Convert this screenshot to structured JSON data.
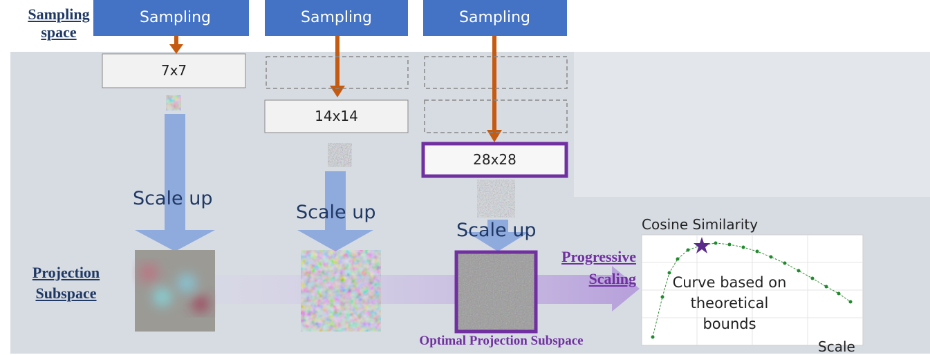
{
  "labels": {
    "sampling_space": "Sampling space",
    "projection_subspace": "Projection Subspace"
  },
  "columns": [
    {
      "sampling": "Sampling",
      "size": "7x7",
      "scale_up": "Scale up"
    },
    {
      "sampling": "Sampling",
      "size": "14x14",
      "scale_up": "Scale up"
    },
    {
      "sampling": "Sampling",
      "size": "28x28",
      "scale_up": "Scale up"
    }
  ],
  "progressive_scaling": "Progressive Scaling",
  "optimal_label": "Optimal Projection Subspace",
  "plot": {
    "title": "Cosine Similarity",
    "annotation": "Curve based on theoretical bounds",
    "x_label": "Scale"
  }
}
